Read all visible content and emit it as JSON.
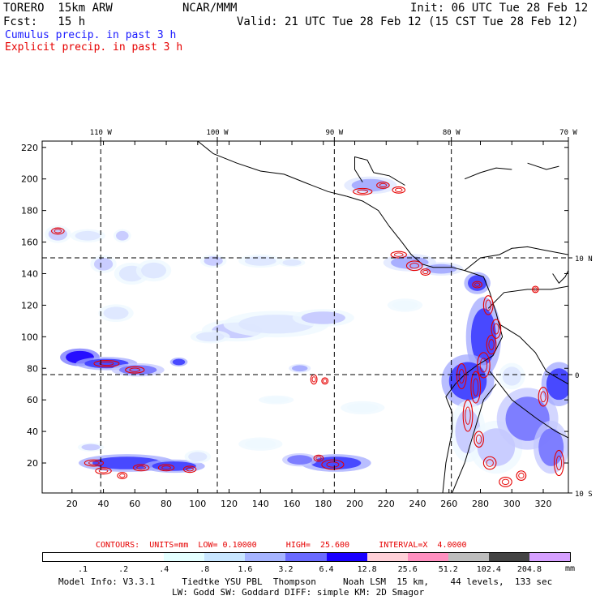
{
  "header": {
    "model": "TORERO  15km ARW",
    "center": "NCAR/MMM",
    "init": "Init: 06 UTC Tue 28 Feb 12",
    "fcst": "Fcst:   15 h",
    "valid": "Valid: 21 UTC Tue 28 Feb 12 (15 CST Tue 28 Feb 12)",
    "line_cumulus": "Cumulus precip. in past 3 h",
    "line_explicit": "Explicit precip. in past 3 h"
  },
  "contours_line": {
    "label": "CONTOURS:  UNITS=mm  LOW= 0.10000      HIGH=  25.600      INTERVAL=X  4.0000"
  },
  "colorbar": {
    "unit": "mm",
    "labels": [
      ".1",
      ".2",
      ".4",
      ".8",
      "1.6",
      "3.2",
      "6.4",
      "12.8",
      "25.6",
      "51.2",
      "102.4",
      "204.8"
    ],
    "colors": [
      "#ffffff",
      "#ffffff",
      "#ffffff",
      "#e4ffff",
      "#c8e6ff",
      "#a6b4ff",
      "#6a6aff",
      "#1a00ff",
      "#ffd0d8",
      "#ff90c0",
      "#bdbdbd",
      "#444444",
      "#d6a0ff"
    ]
  },
  "footer": {
    "line1": "Model Info: V3.3.1     Tiedtke YSU PBL  Thompson     Noah LSM  15 km,    44 levels,  133 sec",
    "line2": "LW: Godd SW: Goddard DIFF: simple KM: 2D Smagor"
  },
  "chart_data": {
    "type": "heatmap",
    "title": "Cumulus / Explicit precip. in past 3 h",
    "x_grid_ticks": [
      20,
      40,
      60,
      80,
      100,
      120,
      140,
      160,
      180,
      200,
      220,
      240,
      260,
      280,
      300,
      320
    ],
    "y_grid_ticks": [
      20,
      40,
      60,
      80,
      100,
      120,
      140,
      160,
      180,
      200,
      220
    ],
    "xlim": [
      1,
      336
    ],
    "ylim": [
      1,
      224
    ],
    "lon_labels": [
      {
        "text": "110 W",
        "x": 38.3
      },
      {
        "text": "100 W",
        "x": 112.5
      },
      {
        "text": "90 W",
        "x": 187
      },
      {
        "text": "80 W",
        "x": 261.5
      },
      {
        "text": "70 W",
        "x": 336
      }
    ],
    "lat_labels": [
      {
        "text": "10 N",
        "y": 150
      },
      {
        "text": "0",
        "y": 76
      },
      {
        "text": "10 S",
        "y": 1
      }
    ],
    "meridians_x": [
      38.3,
      112.5,
      187,
      261.5
    ],
    "parallels_y": [
      150,
      76
    ],
    "cumulus_patches": [
      {
        "x": 25,
        "y": 87,
        "rx": 9,
        "ry": 4,
        "lvl": 7
      },
      {
        "x": 42,
        "y": 83,
        "rx": 14,
        "ry": 3,
        "lvl": 6
      },
      {
        "x": 62,
        "y": 79,
        "rx": 12,
        "ry": 3,
        "lvl": 5
      },
      {
        "x": 11,
        "y": 165,
        "rx": 6,
        "ry": 4,
        "lvl": 3
      },
      {
        "x": 30,
        "y": 164,
        "rx": 8,
        "ry": 3,
        "lvl": 2
      },
      {
        "x": 52,
        "y": 164,
        "rx": 4,
        "ry": 3,
        "lvl": 3
      },
      {
        "x": 40,
        "y": 146,
        "rx": 6,
        "ry": 4,
        "lvl": 3
      },
      {
        "x": 58,
        "y": 140,
        "rx": 8,
        "ry": 5,
        "lvl": 2
      },
      {
        "x": 72,
        "y": 142,
        "rx": 8,
        "ry": 5,
        "lvl": 2
      },
      {
        "x": 110,
        "y": 148,
        "rx": 6,
        "ry": 3,
        "lvl": 3
      },
      {
        "x": 140,
        "y": 148,
        "rx": 10,
        "ry": 3,
        "lvl": 2
      },
      {
        "x": 160,
        "y": 147,
        "rx": 6,
        "ry": 2,
        "lvl": 2
      },
      {
        "x": 48,
        "y": 115,
        "rx": 8,
        "ry": 4,
        "lvl": 2
      },
      {
        "x": 125,
        "y": 104,
        "rx": 16,
        "ry": 5,
        "lvl": 3
      },
      {
        "x": 150,
        "y": 108,
        "rx": 24,
        "ry": 6,
        "lvl": 2
      },
      {
        "x": 180,
        "y": 112,
        "rx": 14,
        "ry": 4,
        "lvl": 3
      },
      {
        "x": 108,
        "y": 100,
        "rx": 9,
        "ry": 3,
        "lvl": 2
      },
      {
        "x": 88,
        "y": 84,
        "rx": 4,
        "ry": 2,
        "lvl": 6
      },
      {
        "x": 165,
        "y": 80,
        "rx": 5,
        "ry": 2,
        "lvl": 4
      },
      {
        "x": 55,
        "y": 20,
        "rx": 22,
        "ry": 4,
        "lvl": 6
      },
      {
        "x": 85,
        "y": 18,
        "rx": 14,
        "ry": 3,
        "lvl": 6
      },
      {
        "x": 32,
        "y": 30,
        "rx": 6,
        "ry": 2,
        "lvl": 3
      },
      {
        "x": 100,
        "y": 24,
        "rx": 6,
        "ry": 3,
        "lvl": 2
      },
      {
        "x": 188,
        "y": 20,
        "rx": 16,
        "ry": 4,
        "lvl": 6
      },
      {
        "x": 165,
        "y": 22,
        "rx": 8,
        "ry": 3,
        "lvl": 5
      },
      {
        "x": 210,
        "y": 196,
        "rx": 12,
        "ry": 4,
        "lvl": 4
      },
      {
        "x": 235,
        "y": 147,
        "rx": 12,
        "ry": 4,
        "lvl": 4
      },
      {
        "x": 255,
        "y": 143,
        "rx": 10,
        "ry": 3,
        "lvl": 4
      },
      {
        "x": 278,
        "y": 134,
        "rx": 6,
        "ry": 5,
        "lvl": 6
      },
      {
        "x": 282,
        "y": 100,
        "rx": 8,
        "ry": 18,
        "lvl": 6
      },
      {
        "x": 272,
        "y": 72,
        "rx": 12,
        "ry": 12,
        "lvl": 6
      },
      {
        "x": 272,
        "y": 40,
        "rx": 8,
        "ry": 14,
        "lvl": 3
      },
      {
        "x": 290,
        "y": 30,
        "rx": 12,
        "ry": 12,
        "lvl": 3
      },
      {
        "x": 310,
        "y": 48,
        "rx": 14,
        "ry": 14,
        "lvl": 5
      },
      {
        "x": 330,
        "y": 70,
        "rx": 8,
        "ry": 10,
        "lvl": 6
      },
      {
        "x": 325,
        "y": 30,
        "rx": 8,
        "ry": 12,
        "lvl": 5
      },
      {
        "x": 300,
        "y": 75,
        "rx": 6,
        "ry": 6,
        "lvl": 2
      },
      {
        "x": 150,
        "y": 60,
        "rx": 8,
        "ry": 2,
        "lvl": 1
      },
      {
        "x": 205,
        "y": 55,
        "rx": 10,
        "ry": 3,
        "lvl": 1
      },
      {
        "x": 232,
        "y": 120,
        "rx": 8,
        "ry": 3,
        "lvl": 1
      },
      {
        "x": 140,
        "y": 32,
        "rx": 10,
        "ry": 3,
        "lvl": 1
      }
    ],
    "explicit_contours": [
      {
        "x": 11,
        "y": 167,
        "rx": 4,
        "ry": 2
      },
      {
        "x": 42,
        "y": 83,
        "rx": 8,
        "ry": 2
      },
      {
        "x": 60,
        "y": 79,
        "rx": 6,
        "ry": 2
      },
      {
        "x": 34,
        "y": 20,
        "rx": 6,
        "ry": 2
      },
      {
        "x": 40,
        "y": 15,
        "rx": 5,
        "ry": 2
      },
      {
        "x": 52,
        "y": 12,
        "rx": 3,
        "ry": 2
      },
      {
        "x": 64,
        "y": 17,
        "rx": 5,
        "ry": 2
      },
      {
        "x": 80,
        "y": 17,
        "rx": 5,
        "ry": 2
      },
      {
        "x": 95,
        "y": 16,
        "rx": 4,
        "ry": 2
      },
      {
        "x": 177,
        "y": 23,
        "rx": 3,
        "ry": 2
      },
      {
        "x": 186,
        "y": 19,
        "rx": 7,
        "ry": 3
      },
      {
        "x": 174,
        "y": 73,
        "rx": 2,
        "ry": 3
      },
      {
        "x": 181,
        "y": 72,
        "rx": 2,
        "ry": 2
      },
      {
        "x": 205,
        "y": 192,
        "rx": 6,
        "ry": 2
      },
      {
        "x": 218,
        "y": 196,
        "rx": 4,
        "ry": 2
      },
      {
        "x": 228,
        "y": 193,
        "rx": 4,
        "ry": 2
      },
      {
        "x": 228,
        "y": 152,
        "rx": 5,
        "ry": 2
      },
      {
        "x": 238,
        "y": 145,
        "rx": 5,
        "ry": 3
      },
      {
        "x": 245,
        "y": 141,
        "rx": 3,
        "ry": 2
      },
      {
        "x": 278,
        "y": 133,
        "rx": 3,
        "ry": 2
      },
      {
        "x": 285,
        "y": 120,
        "rx": 3,
        "ry": 6
      },
      {
        "x": 290,
        "y": 105,
        "rx": 3,
        "ry": 6
      },
      {
        "x": 287,
        "y": 95,
        "rx": 3,
        "ry": 6
      },
      {
        "x": 282,
        "y": 82,
        "rx": 4,
        "ry": 8
      },
      {
        "x": 277,
        "y": 68,
        "rx": 3,
        "ry": 10
      },
      {
        "x": 272,
        "y": 50,
        "rx": 3,
        "ry": 10
      },
      {
        "x": 268,
        "y": 75,
        "rx": 3,
        "ry": 8
      },
      {
        "x": 279,
        "y": 35,
        "rx": 3,
        "ry": 5
      },
      {
        "x": 286,
        "y": 20,
        "rx": 4,
        "ry": 4
      },
      {
        "x": 296,
        "y": 8,
        "rx": 4,
        "ry": 3
      },
      {
        "x": 306,
        "y": 12,
        "rx": 3,
        "ry": 3
      },
      {
        "x": 320,
        "y": 62,
        "rx": 3,
        "ry": 6
      },
      {
        "x": 330,
        "y": 20,
        "rx": 3,
        "ry": 8
      },
      {
        "x": 315,
        "y": 130,
        "rx": 2,
        "ry": 2
      }
    ],
    "coastlines": [
      [
        [
          100,
          224
        ],
        [
          110,
          216
        ],
        [
          125,
          210
        ],
        [
          140,
          205
        ],
        [
          155,
          203
        ],
        [
          170,
          197
        ],
        [
          183,
          192
        ],
        [
          195,
          189
        ]
      ],
      [
        [
          195,
          189
        ],
        [
          205,
          186
        ],
        [
          215,
          180
        ],
        [
          222,
          170
        ],
        [
          230,
          160
        ],
        [
          236,
          152
        ],
        [
          243,
          146
        ],
        [
          250,
          144
        ],
        [
          262,
          144
        ],
        [
          270,
          142
        ]
      ],
      [
        [
          270,
          142
        ],
        [
          276,
          140
        ],
        [
          282,
          138
        ],
        [
          286,
          128
        ],
        [
          290,
          115
        ],
        [
          294,
          100
        ],
        [
          288,
          88
        ],
        [
          278,
          82
        ],
        [
          270,
          76
        ],
        [
          264,
          70
        ],
        [
          258,
          62
        ],
        [
          262,
          52
        ],
        [
          262,
          40
        ],
        [
          258,
          20
        ],
        [
          256,
          1
        ]
      ],
      [
        [
          270,
          142
        ],
        [
          280,
          150
        ],
        [
          292,
          152
        ],
        [
          300,
          156
        ],
        [
          310,
          157
        ],
        [
          320,
          155
        ],
        [
          336,
          152
        ]
      ],
      [
        [
          285,
          118
        ],
        [
          295,
          128
        ],
        [
          310,
          130
        ],
        [
          325,
          130
        ],
        [
          336,
          132
        ]
      ],
      [
        [
          292,
          108
        ],
        [
          305,
          100
        ],
        [
          315,
          90
        ],
        [
          322,
          78
        ],
        [
          336,
          70
        ]
      ],
      [
        [
          286,
          78
        ],
        [
          300,
          60
        ],
        [
          316,
          48
        ],
        [
          328,
          40
        ],
        [
          336,
          36
        ]
      ],
      [
        [
          262,
          1
        ],
        [
          270,
          20
        ],
        [
          276,
          40
        ],
        [
          282,
          60
        ],
        [
          290,
          70
        ]
      ],
      [
        [
          212,
          204
        ],
        [
          208,
          212
        ],
        [
          200,
          214
        ],
        [
          200,
          206
        ],
        [
          205,
          198
        ]
      ],
      [
        [
          212,
          204
        ],
        [
          222,
          202
        ],
        [
          232,
          196
        ]
      ],
      [
        [
          270,
          200
        ],
        [
          280,
          204
        ],
        [
          290,
          207
        ],
        [
          300,
          206
        ]
      ],
      [
        [
          310,
          210
        ],
        [
          322,
          206
        ],
        [
          330,
          208
        ]
      ],
      [
        [
          326,
          140
        ],
        [
          330,
          134
        ],
        [
          334,
          138
        ],
        [
          336,
          142
        ]
      ]
    ]
  }
}
